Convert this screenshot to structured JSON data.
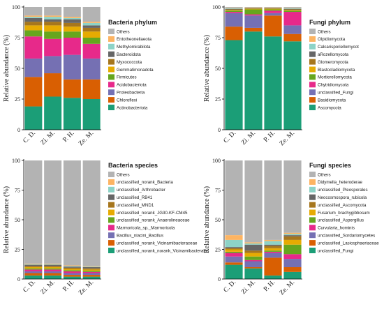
{
  "colors": {
    "Others": "#b3b3b3",
    "c1": "#1b9e77",
    "c2": "#d95f02",
    "c3": "#7570b3",
    "c4": "#e7298a",
    "c5": "#66a61e",
    "c6": "#e6ab02",
    "c7": "#a6761d",
    "c8": "#666666",
    "c9": "#8dd3c7",
    "c10": "#fdb462",
    "c11": "#cccccc"
  },
  "chart_data": [
    {
      "type": "bar",
      "stacked": true,
      "ylabel": "Relative abundance (%)",
      "ylim": [
        0,
        100
      ],
      "yticks": [
        0,
        25,
        50,
        75,
        100
      ],
      "categories": [
        "C. D.",
        "Zi. M.",
        "P. H.",
        "Ze. M."
      ],
      "legend_title": "Bacteria phylum",
      "legend_position": "right",
      "series": [
        {
          "name": "Actinobacteriota",
          "color_key": "c1",
          "values": [
            19,
            27,
            26,
            25
          ]
        },
        {
          "name": "Chloroflexi",
          "color_key": "c2",
          "values": [
            24,
            19,
            15,
            16
          ]
        },
        {
          "name": "Proteobacteria",
          "color_key": "c3",
          "values": [
            15,
            14,
            20,
            17
          ]
        },
        {
          "name": "Acidobacteriota",
          "color_key": "c4",
          "values": [
            18,
            14,
            14,
            12
          ]
        },
        {
          "name": "Firmicutes",
          "color_key": "c5",
          "values": [
            5,
            6,
            5,
            5
          ]
        },
        {
          "name": "Gemmatimonadota",
          "color_key": "c6",
          "values": [
            4,
            5,
            4,
            5
          ]
        },
        {
          "name": "Myxococcota",
          "color_key": "c7",
          "values": [
            3,
            3,
            3,
            3
          ]
        },
        {
          "name": "Bacteroidota",
          "color_key": "c8",
          "values": [
            3,
            2,
            3,
            2
          ]
        },
        {
          "name": "Methylomirabilota",
          "color_key": "c9",
          "values": [
            1,
            2,
            1,
            2
          ]
        },
        {
          "name": "Entotheonellaeota",
          "color_key": "c10",
          "values": [
            1,
            1,
            1,
            1
          ]
        },
        {
          "name": "Others",
          "color_key": "Others",
          "values": [
            7,
            7,
            8,
            12
          ]
        }
      ]
    },
    {
      "type": "bar",
      "stacked": true,
      "ylabel": "Relative abundance (%)",
      "ylim": [
        0,
        100
      ],
      "yticks": [
        0,
        25,
        50,
        75,
        100
      ],
      "categories": [
        "C. D.",
        "Zi. M.",
        "P. H.",
        "Ze. M."
      ],
      "legend_title": "Fungi phylum",
      "legend_position": "right",
      "series": [
        {
          "name": "Ascomycota",
          "color_key": "c1",
          "values": [
            73,
            80,
            76,
            72
          ]
        },
        {
          "name": "Basidiomycota",
          "color_key": "c2",
          "values": [
            11,
            3,
            17,
            6
          ]
        },
        {
          "name": "unclassified_Fungi",
          "color_key": "c3",
          "values": [
            11,
            10,
            2,
            7
          ]
        },
        {
          "name": "Chytridiomycota",
          "color_key": "c4",
          "values": [
            1,
            1,
            2,
            11
          ]
        },
        {
          "name": "Mortierellomycota",
          "color_key": "c5",
          "values": [
            1,
            4,
            1,
            1
          ]
        },
        {
          "name": "Blastocladiomycota",
          "color_key": "c6",
          "values": [
            0.5,
            0.5,
            0.5,
            0.5
          ]
        },
        {
          "name": "Glomeromycota",
          "color_key": "c7",
          "values": [
            0.5,
            0.5,
            0.5,
            0.5
          ]
        },
        {
          "name": "aRozellomycota",
          "color_key": "c8",
          "values": [
            0.5,
            0.3,
            0.3,
            0.5
          ]
        },
        {
          "name": "Calcarisporiellomycot",
          "color_key": "c9",
          "values": [
            0.5,
            0.2,
            0.2,
            0.5
          ]
        },
        {
          "name": "Olpidiomycota",
          "color_key": "c10",
          "values": [
            0.3,
            0.2,
            0.2,
            0.3
          ]
        },
        {
          "name": "Others",
          "color_key": "Others",
          "values": [
            0.7,
            0.3,
            0.3,
            0.7
          ]
        }
      ]
    },
    {
      "type": "bar",
      "stacked": true,
      "ylabel": "Relative abundance (%)",
      "ylim": [
        0,
        100
      ],
      "yticks": [
        0,
        25,
        50,
        75,
        100
      ],
      "categories": [
        "C. D.",
        "Zi. M.",
        "P. H.",
        "Ze. M."
      ],
      "legend_title": "Bacteria species",
      "legend_position": "right",
      "series": [
        {
          "name": "unclassified_norank_norank_Vicinamibacterales",
          "color_key": "c1",
          "values": [
            3,
            3,
            2,
            2
          ]
        },
        {
          "name": "unclassified_norank_Vicinamibacteraceae",
          "color_key": "c2",
          "values": [
            2,
            2,
            1.5,
            1.5
          ]
        },
        {
          "name": "Bacillus_niacini_Bacillus",
          "color_key": "c3",
          "values": [
            1.5,
            1.5,
            1.5,
            1.5
          ]
        },
        {
          "name": "Marmoricola_sp._Marmoricola",
          "color_key": "c4",
          "values": [
            1.5,
            1.5,
            1.5,
            1
          ]
        },
        {
          "name": "unclassified_norank_Anaerolineaceae",
          "color_key": "c5",
          "values": [
            1,
            1,
            1,
            1
          ]
        },
        {
          "name": "unclassified_norank_JG30-KF-CM45",
          "color_key": "c6",
          "values": [
            1,
            1,
            1,
            1
          ]
        },
        {
          "name": "unclassified_MND1",
          "color_key": "c7",
          "values": [
            1,
            1,
            1,
            1
          ]
        },
        {
          "name": "unclassified_RB41",
          "color_key": "c8",
          "values": [
            1,
            1,
            1,
            1
          ]
        },
        {
          "name": "unclassified_Arthrobacter",
          "color_key": "c9",
          "values": [
            0.5,
            0.5,
            0.5,
            0.5
          ]
        },
        {
          "name": "unclassified_norank_Bacteria",
          "color_key": "c10",
          "values": [
            0.5,
            0.5,
            0.5,
            0.5
          ]
        },
        {
          "name": "Others",
          "color_key": "Others",
          "values": [
            87,
            87,
            88.5,
            89
          ]
        }
      ]
    },
    {
      "type": "bar",
      "stacked": true,
      "ylabel": "Relative abundance (%)",
      "ylim": [
        0,
        100
      ],
      "yticks": [
        0,
        25,
        50,
        75,
        100
      ],
      "categories": [
        "C. D.",
        "Zi. M.",
        "P. H.",
        "Ze. M."
      ],
      "legend_title": "Fungi species",
      "legend_position": "right",
      "series": [
        {
          "name": "unclassified_Fungi",
          "color_key": "c1",
          "values": [
            12,
            9,
            3,
            6
          ]
        },
        {
          "name": "unclassified_Lasiosphaeriaceae",
          "color_key": "c2",
          "values": [
            2,
            1,
            15,
            4
          ]
        },
        {
          "name": "unclassified_Sordariomycetes",
          "color_key": "c3",
          "values": [
            5,
            5,
            4,
            7
          ]
        },
        {
          "name": "Curvularia_hominis",
          "color_key": "c4",
          "values": [
            3,
            1,
            1,
            4
          ]
        },
        {
          "name": "unclassified_Aspergillus",
          "color_key": "c5",
          "values": [
            1,
            3,
            1,
            8
          ]
        },
        {
          "name": "Fusarium_brachygibbosum",
          "color_key": "c6",
          "values": [
            2,
            3,
            2,
            4
          ]
        },
        {
          "name": "unclassified_Ascomycota",
          "color_key": "c7",
          "values": [
            1,
            2,
            2,
            3
          ]
        },
        {
          "name": "Neocosmospora_rubicola",
          "color_key": "c8",
          "values": [
            1,
            5,
            1,
            1
          ]
        },
        {
          "name": "unclassified_Pleosporales",
          "color_key": "c9",
          "values": [
            6,
            1,
            3,
            1
          ]
        },
        {
          "name": "Didymella_heteroderae",
          "color_key": "c10",
          "values": [
            4,
            1,
            1,
            1
          ]
        },
        {
          "name": "Others",
          "color_key": "Others",
          "values": [
            63,
            69,
            67,
            61
          ]
        }
      ]
    }
  ]
}
